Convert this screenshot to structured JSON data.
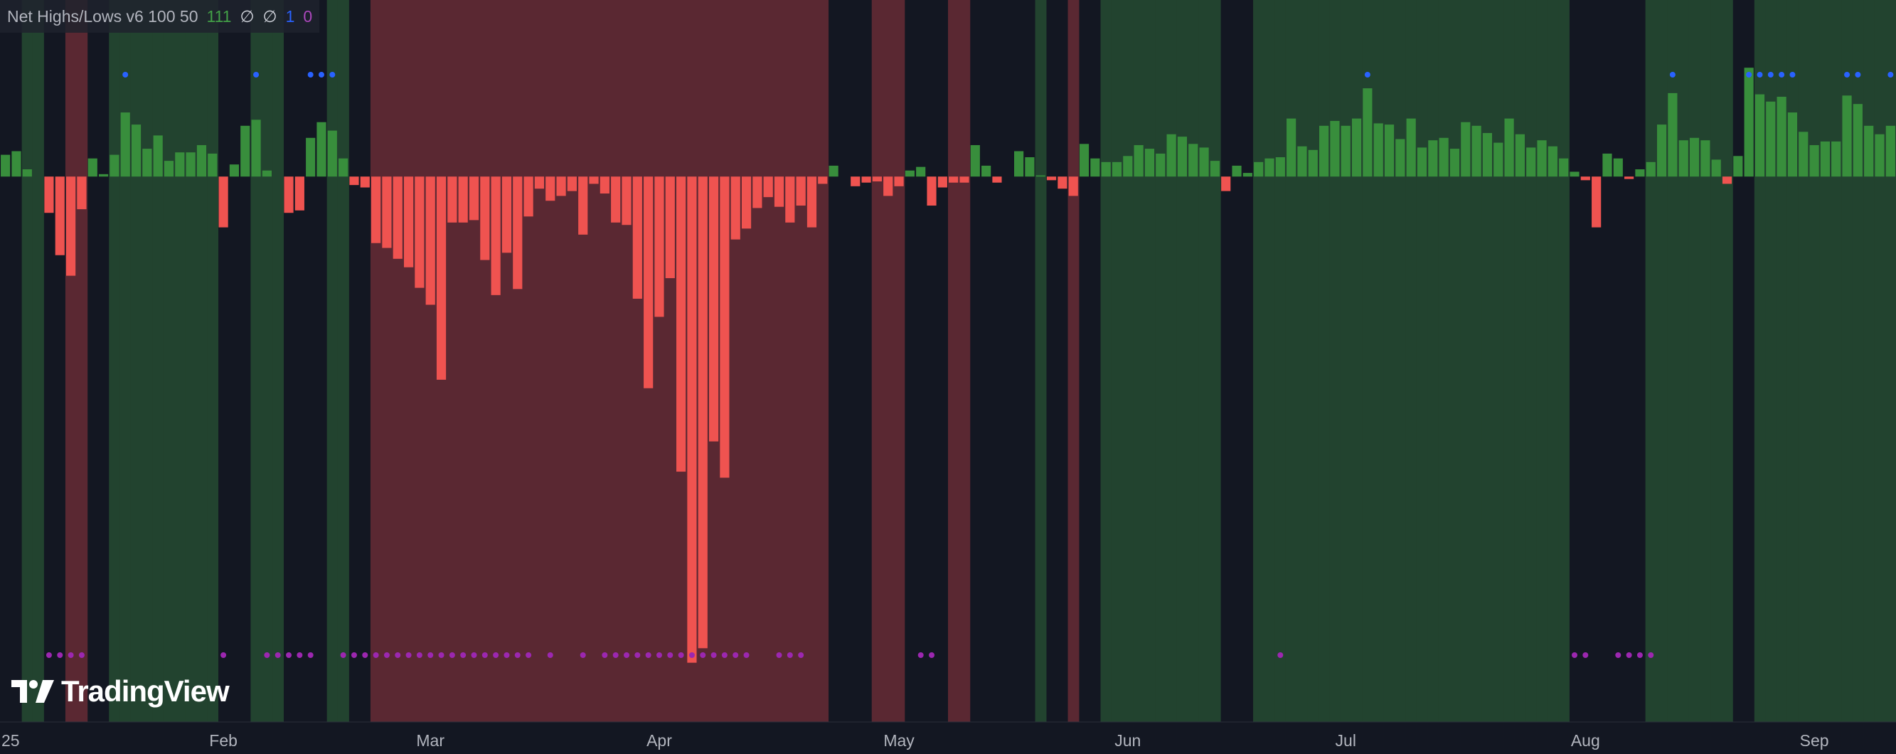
{
  "chart_data": {
    "type": "bar",
    "legend": {
      "title": "Net Highs/Lows v6 100 50",
      "items": [
        {
          "text": "111",
          "color": "#43a047"
        },
        {
          "text": "∅",
          "color": "#d1d4dc"
        },
        {
          "text": "∅",
          "color": "#d1d4dc"
        },
        {
          "text": "1",
          "color": "#2962ff"
        },
        {
          "text": "0",
          "color": "#ab47bc"
        }
      ]
    },
    "watermark": "TradingView",
    "categories": [
      "25",
      null,
      null,
      null,
      null,
      null,
      null,
      null,
      null,
      null,
      null,
      null,
      null,
      null,
      null,
      null,
      null,
      null,
      null,
      null,
      "Feb",
      null,
      null,
      null,
      null,
      null,
      null,
      null,
      null,
      null,
      null,
      null,
      null,
      null,
      null,
      null,
      null,
      null,
      null,
      "Mar",
      null,
      null,
      null,
      null,
      null,
      null,
      null,
      null,
      null,
      null,
      null,
      null,
      null,
      null,
      null,
      null,
      null,
      null,
      null,
      null,
      "Apr",
      null,
      null,
      null,
      null,
      null,
      null,
      null,
      null,
      null,
      null,
      null,
      null,
      null,
      null,
      null,
      null,
      null,
      null,
      null,
      null,
      null,
      "May",
      null,
      null,
      null,
      null,
      null,
      null,
      null,
      null,
      null,
      null,
      null,
      null,
      null,
      null,
      null,
      null,
      null,
      null,
      null,
      null,
      "Jun",
      null,
      null,
      null,
      null,
      null,
      null,
      null,
      null,
      null,
      null,
      null,
      null,
      null,
      null,
      null,
      null,
      null,
      null,
      null,
      "Jul",
      null,
      null,
      null,
      null,
      null,
      null,
      null,
      null,
      null,
      null,
      null,
      null,
      null,
      null,
      null,
      null,
      null,
      null,
      null,
      null,
      null,
      "Aug",
      null,
      null,
      null,
      null,
      null,
      null,
      null,
      null,
      null,
      null,
      null,
      null,
      null,
      null,
      null,
      null,
      null,
      null,
      null,
      null,
      "Sep",
      null,
      null,
      null,
      null,
      null,
      null,
      null
    ],
    "values": [
      1.8,
      2.1,
      0.6,
      0,
      -3,
      -6.5,
      -8.2,
      -2.7,
      1.5,
      0.2,
      1.8,
      5.3,
      4.3,
      2.3,
      3.4,
      1.3,
      2,
      2,
      2.6,
      1.9,
      -4.2,
      1,
      4.2,
      4.7,
      0.5,
      0,
      -3,
      -2.8,
      3.2,
      4.5,
      3.8,
      1.5,
      -0.7,
      -0.9,
      -5.5,
      -5.9,
      -6.8,
      -7.5,
      -9.2,
      -10.6,
      -16.8,
      -3.8,
      -3.8,
      -3.6,
      -6.9,
      -9.8,
      -6.3,
      -9.3,
      -3.3,
      -1,
      -2,
      -1.6,
      -1.2,
      -4.8,
      -0.6,
      -1.4,
      -3.8,
      -4,
      -10.1,
      -17.5,
      -11.6,
      -8.4,
      -24.4,
      -40.2,
      -39,
      -21.9,
      -24.9,
      -5.2,
      -4.3,
      -2.6,
      -1.7,
      -2.5,
      -3.8,
      -2.4,
      -4.2,
      -0.6,
      0.9,
      0,
      -0.8,
      -0.5,
      -0.4,
      -1.6,
      -0.8,
      0.5,
      0.8,
      -2.4,
      -0.9,
      -0.5,
      -0.5,
      2.6,
      0.9,
      -0.5,
      0,
      2.1,
      1.6,
      0.1,
      -0.3,
      -1,
      -1.6,
      2.7,
      1.5,
      1.2,
      1.2,
      1.7,
      2.6,
      2.3,
      1.9,
      3.5,
      3.3,
      2.7,
      2.4,
      1.3,
      -1.2,
      0.9,
      0.3,
      1.2,
      1.5,
      1.6,
      4.8,
      2.5,
      2.2,
      4.2,
      4.6,
      4.2,
      4.8,
      7.3,
      4.4,
      4.3,
      3.1,
      4.8,
      2.4,
      3,
      3.2,
      2.3,
      4.5,
      4.2,
      3.6,
      2.8,
      4.8,
      3.5,
      2.4,
      3,
      2.5,
      1.5,
      0.4,
      -0.3,
      -4.2,
      1.9,
      1.5,
      -0.2,
      0.6,
      1.2,
      4.3,
      6.9,
      3,
      3.2,
      3,
      1.4,
      -0.6,
      1.7,
      9,
      6.8,
      6.2,
      6.6,
      5.3,
      3.7,
      2.6,
      2.9,
      2.9,
      6.7,
      6,
      4.2,
      3.5,
      4.2
    ],
    "regime": [
      0,
      0,
      1,
      1,
      0,
      0,
      -1,
      -1,
      0,
      0,
      1,
      1,
      1,
      1,
      1,
      1,
      1,
      1,
      1,
      1,
      0,
      0,
      0,
      1,
      1,
      1,
      0,
      0,
      0,
      0,
      1,
      1,
      0,
      0,
      -1,
      -1,
      -1,
      -1,
      -1,
      -1,
      -1,
      -1,
      -1,
      -1,
      -1,
      -1,
      -1,
      -1,
      -1,
      -1,
      -1,
      -1,
      -1,
      -1,
      -1,
      -1,
      -1,
      -1,
      -1,
      -1,
      -1,
      -1,
      -1,
      -1,
      -1,
      -1,
      -1,
      -1,
      -1,
      -1,
      -1,
      -1,
      -1,
      -1,
      -1,
      -1,
      0,
      0,
      0,
      0,
      -1,
      -1,
      -1,
      0,
      0,
      0,
      0,
      -1,
      -1,
      0,
      0,
      0,
      0,
      0,
      0,
      1,
      0,
      0,
      -1,
      0,
      0,
      1,
      1,
      1,
      1,
      1,
      1,
      1,
      1,
      1,
      1,
      1,
      0,
      0,
      0,
      1,
      1,
      1,
      1,
      1,
      1,
      1,
      1,
      1,
      1,
      1,
      1,
      1,
      1,
      1,
      1,
      1,
      1,
      1,
      1,
      1,
      1,
      1,
      1,
      1,
      1,
      1,
      1,
      1,
      0,
      0,
      0,
      0,
      0,
      0,
      0,
      1,
      1,
      1,
      1,
      1,
      1,
      1,
      1,
      0,
      0,
      1,
      1,
      1,
      1,
      1,
      1,
      1,
      1,
      1,
      1,
      1,
      1,
      1
    ],
    "new_high_markers": [
      11,
      23,
      28,
      29,
      30,
      125,
      153,
      160,
      161,
      162,
      163,
      164,
      169,
      170,
      173
    ],
    "new_low_markers": [
      4,
      5,
      6,
      7,
      20,
      24,
      25,
      26,
      27,
      28,
      31,
      32,
      33,
      34,
      35,
      36,
      37,
      38,
      39,
      40,
      41,
      42,
      43,
      44,
      45,
      46,
      47,
      48,
      50,
      53,
      55,
      56,
      57,
      58,
      59,
      60,
      61,
      62,
      63,
      64,
      65,
      66,
      67,
      68,
      71,
      72,
      73,
      84,
      85,
      117,
      144,
      145,
      148,
      149,
      150,
      151
    ],
    "colors": {
      "positive": "#388e3c",
      "negative": "#ef5350",
      "up_regime": "#22432f",
      "down_regime": "#5a2832",
      "high_marker": "#2962ff",
      "low_marker": "#9c27b0"
    },
    "ylim": [
      -45.1,
      14.6
    ]
  }
}
